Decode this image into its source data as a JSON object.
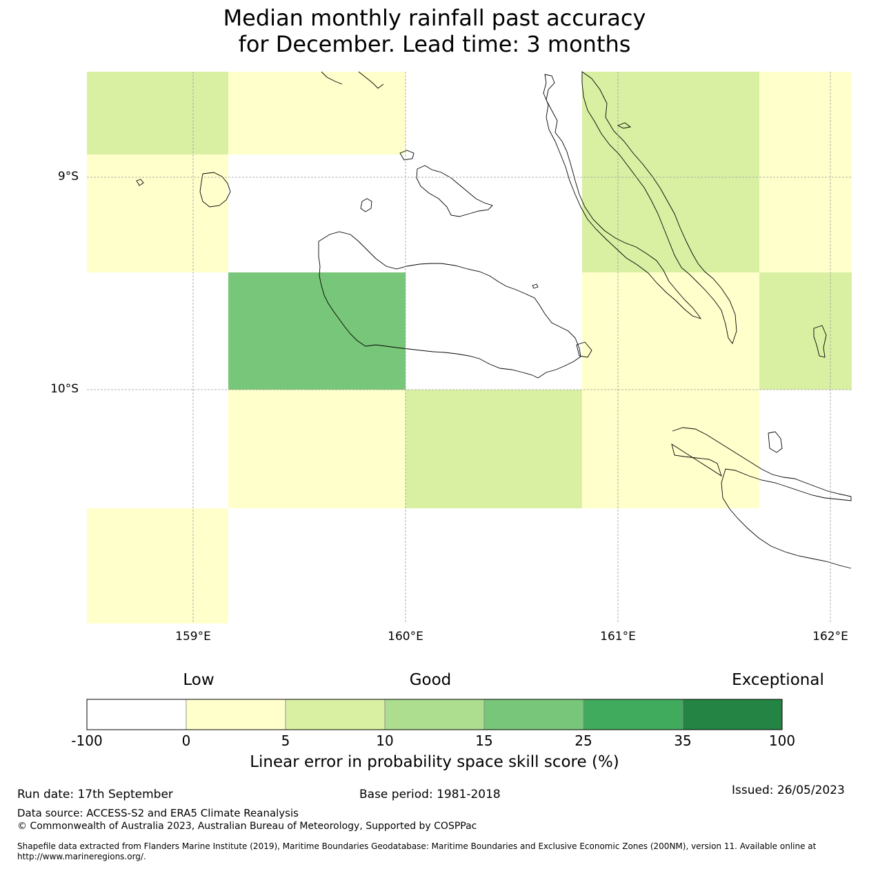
{
  "title": {
    "line1": "Median monthly rainfall past accuracy",
    "line2": "for December. Lead time: 3 months"
  },
  "map": {
    "lat_labels": [
      "9°S",
      "10°S"
    ],
    "lon_labels": [
      "159°E",
      "160°E",
      "161°E",
      "162°E"
    ],
    "cells": [
      {
        "row": 0,
        "col": 0,
        "category": "5-10"
      },
      {
        "row": 0,
        "col": 1,
        "category": "0-5"
      },
      {
        "row": 0,
        "col": 2,
        "category": "below-0"
      },
      {
        "row": 0,
        "col": 3,
        "category": "5-10"
      },
      {
        "row": 0,
        "col": 4,
        "category": "0-5"
      },
      {
        "row": 1,
        "col": 0,
        "category": "0-5"
      },
      {
        "row": 1,
        "col": 1,
        "category": "below-0"
      },
      {
        "row": 1,
        "col": 2,
        "category": "below-0"
      },
      {
        "row": 1,
        "col": 3,
        "category": "5-10"
      },
      {
        "row": 1,
        "col": 4,
        "category": "0-5"
      },
      {
        "row": 2,
        "col": 0,
        "category": "below-0"
      },
      {
        "row": 2,
        "col": 1,
        "category": "15-25"
      },
      {
        "row": 2,
        "col": 2,
        "category": "below-0"
      },
      {
        "row": 2,
        "col": 3,
        "category": "0-5"
      },
      {
        "row": 2,
        "col": 4,
        "category": "5-10"
      },
      {
        "row": 3,
        "col": 0,
        "category": "below-0"
      },
      {
        "row": 3,
        "col": 1,
        "category": "0-5"
      },
      {
        "row": 3,
        "col": 2,
        "category": "5-10"
      },
      {
        "row": 3,
        "col": 3,
        "category": "0-5"
      },
      {
        "row": 3,
        "col": 4,
        "category": "below-0"
      },
      {
        "row": 4,
        "col": 0,
        "category": "0-5"
      },
      {
        "row": 4,
        "col": 1,
        "category": "below-0"
      },
      {
        "row": 4,
        "col": 2,
        "category": "below-0"
      },
      {
        "row": 4,
        "col": 3,
        "category": "below-0"
      },
      {
        "row": 4,
        "col": 4,
        "category": "below-0"
      }
    ]
  },
  "colorbar": {
    "category_labels": [
      "Low",
      "Good",
      "Exceptional"
    ],
    "ticks": [
      "-100",
      "0",
      "5",
      "10",
      "15",
      "25",
      "35",
      "100"
    ],
    "colors": [
      "#ffffff",
      "#ffffcc",
      "#d9f0a3",
      "#addd8e",
      "#78c679",
      "#41ab5d",
      "#238443"
    ],
    "title": "Linear error in probability space skill score (%)"
  },
  "footer": {
    "run_date": "Run date: 17th September",
    "base_period": "Base period: 1981-2018",
    "issued": "Issued: 26/05/2023",
    "data_source": "Data source: ACCESS-S2 and ERA5 Climate Reanalysis",
    "copyright": "© Commonwealth of Australia 2023, Australian Bureau of Meteorology, Supported by COSPPac",
    "shapefile": "Shapefile data extracted from Flanders Marine Institute (2019), Maritime Boundaries Geodatabase: Maritime Boundaries and Exclusive Economic Zones (200NM), version 11. Available online at http://www.marineregions.org/."
  }
}
